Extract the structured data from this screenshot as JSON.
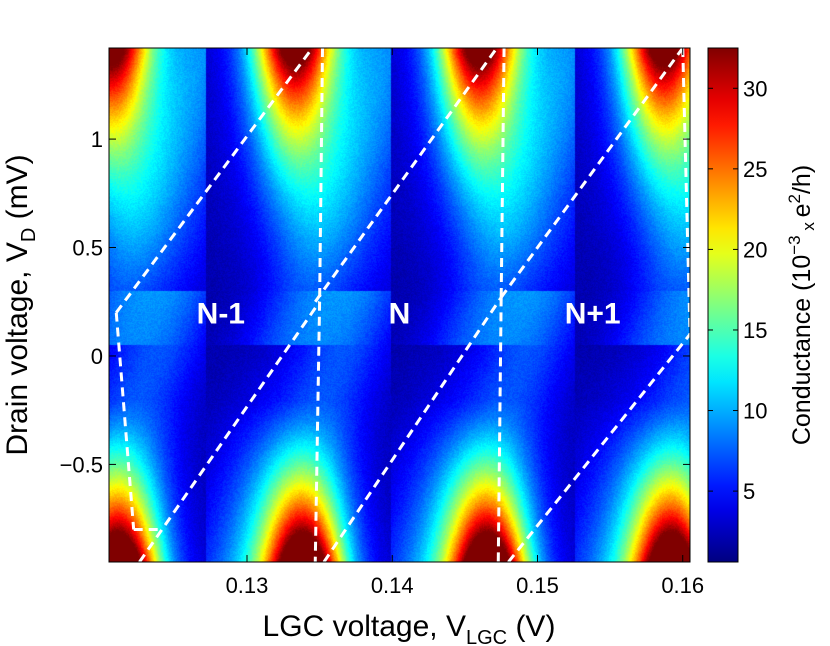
{
  "chart_data": {
    "type": "heatmap",
    "title": "",
    "colormap": "jet",
    "xlabel": {
      "main": "LGC voltage, V",
      "sub": "LGC",
      "unit": " (V)"
    },
    "ylabel": {
      "main": "Drain voltage, V",
      "sub": "D",
      "unit": " (mV)"
    },
    "xlim": [
      0.1205,
      0.1605
    ],
    "ylim": [
      -0.95,
      1.42
    ],
    "xticks": [
      {
        "value": 0.13,
        "label": "0.13"
      },
      {
        "value": 0.14,
        "label": "0.14"
      },
      {
        "value": 0.15,
        "label": "0.15"
      },
      {
        "value": 0.16,
        "label": "0.16"
      }
    ],
    "yticks": [
      {
        "value": -0.5,
        "label": "−0.5"
      },
      {
        "value": 0,
        "label": "0"
      },
      {
        "value": 0.5,
        "label": "0.5"
      },
      {
        "value": 1,
        "label": "1"
      }
    ],
    "colorbar": {
      "min": 0.6,
      "max": 32.5,
      "ticks": [
        {
          "value": 5,
          "label": "5"
        },
        {
          "value": 10,
          "label": "10"
        },
        {
          "value": 15,
          "label": "15"
        },
        {
          "value": 20,
          "label": "20"
        },
        {
          "value": 25,
          "label": "25"
        },
        {
          "value": 30,
          "label": "30"
        }
      ],
      "label": {
        "pre": "Conductance (10",
        "sup1": "−3",
        "mid1": " x ",
        "mid2": "e",
        "sup2": "2",
        "post": "/h)"
      }
    },
    "diamond_period": 0.0127,
    "diamond_vertices": [
      {
        "x": 0.121,
        "y": 0.2
      },
      {
        "x": 0.1345,
        "y": 1.42
      },
      {
        "x": 0.135,
        "y": 0.25
      },
      {
        "x": 0.1226,
        "y": -0.95
      },
      {
        "x": 0.1222,
        "y": -0.8
      }
    ],
    "boundaries": [
      {
        "x1": 0.121,
        "y1": 0.2,
        "x2": 0.1345,
        "y2": 1.42
      },
      {
        "x1": 0.1226,
        "y1": -0.95,
        "x2": 0.135,
        "y2": 0.25
      },
      {
        "x1": 0.121,
        "y1": 0.2,
        "x2": 0.1222,
        "y2": -0.8
      },
      {
        "x1": 0.1222,
        "y1": -0.8,
        "x2": 0.1242,
        "y2": -0.8
      },
      {
        "x1": 0.1352,
        "y1": 1.42,
        "x2": 0.135,
        "y2": 0.25
      },
      {
        "x1": 0.135,
        "y1": 0.25,
        "x2": 0.1347,
        "y2": -0.95
      },
      {
        "x1": 0.1347,
        "y1": 0.25,
        "x2": 0.1472,
        "y2": 1.42
      },
      {
        "x1": 0.1353,
        "y1": -0.95,
        "x2": 0.1475,
        "y2": 0.27
      },
      {
        "x1": 0.1475,
        "y1": 0.27,
        "x2": 0.16,
        "y2": 1.42
      },
      {
        "x1": 0.148,
        "y1": -0.95,
        "x2": 0.1605,
        "y2": 0.1
      },
      {
        "x1": 0.1477,
        "y1": 1.42,
        "x2": 0.1475,
        "y2": 0.27
      },
      {
        "x1": 0.1475,
        "y1": 0.27,
        "x2": 0.1473,
        "y2": -0.95
      },
      {
        "x1": 0.16,
        "y1": 1.42,
        "x2": 0.1605,
        "y2": 0.1
      }
    ],
    "annotations": [
      {
        "text": "N-1",
        "x": 0.1282,
        "y": 0.15
      },
      {
        "text": "N",
        "x": 0.1405,
        "y": 0.15
      },
      {
        "text": "N+1",
        "x": 0.1538,
        "y": 0.15
      }
    ]
  }
}
